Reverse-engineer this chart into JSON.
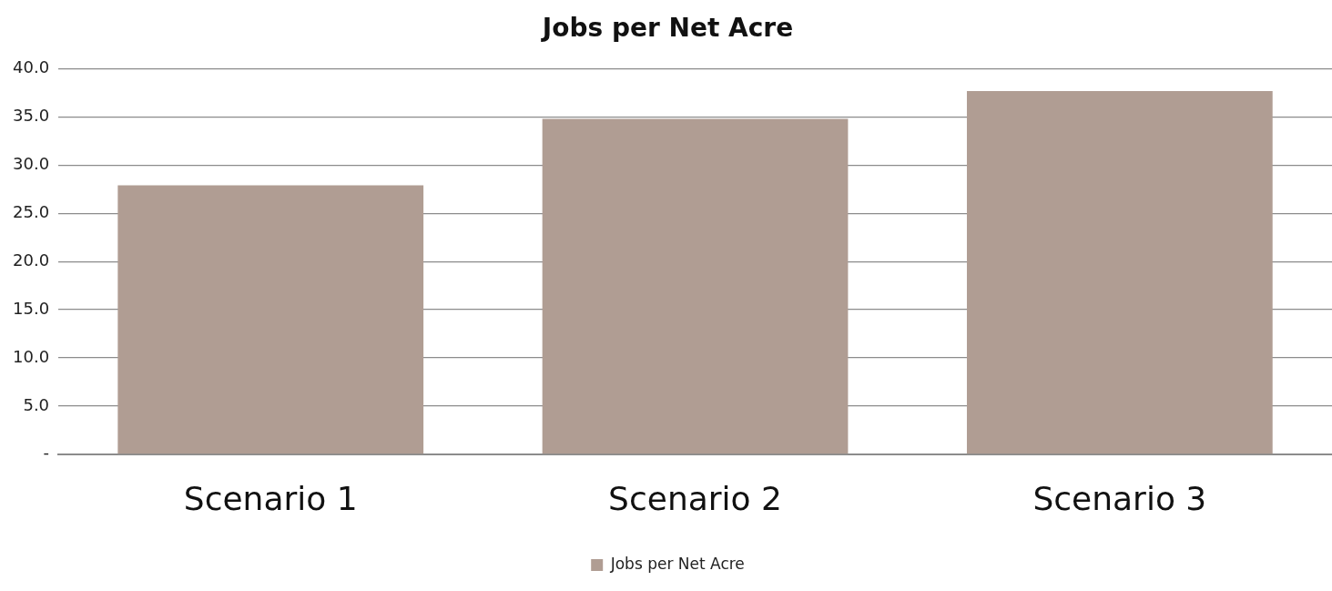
{
  "chart_data": {
    "type": "bar",
    "title": "Jobs per Net Acre",
    "categories": [
      "Scenario 1",
      "Scenario 2",
      "Scenario 3"
    ],
    "series": [
      {
        "name": "Jobs per Net Acre",
        "color": "#b09d93",
        "values": [
          27.9,
          34.8,
          37.7
        ]
      }
    ],
    "ylim": [
      0,
      40
    ],
    "yticks": [
      {
        "value": 0,
        "label": "-"
      },
      {
        "value": 5,
        "label": "5.0"
      },
      {
        "value": 10,
        "label": "10.0"
      },
      {
        "value": 15,
        "label": "15.0"
      },
      {
        "value": 20,
        "label": "20.0"
      },
      {
        "value": 25,
        "label": "25.0"
      },
      {
        "value": 30,
        "label": "30.0"
      },
      {
        "value": 35,
        "label": "35.0"
      },
      {
        "value": 40,
        "label": "40.0"
      }
    ],
    "grid": "y",
    "legend": "bottom"
  }
}
